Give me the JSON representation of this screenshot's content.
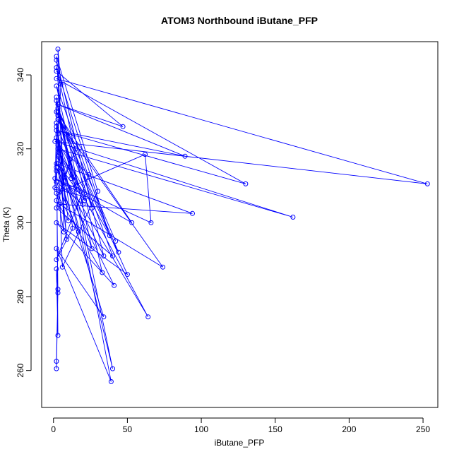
{
  "chart_data": {
    "type": "line",
    "title": "ATOM3 Northbound iButane_PFP",
    "xlabel": "iButane_PFP",
    "ylabel": "Theta (K)",
    "xlim": [
      -8,
      260
    ],
    "ylim": [
      250,
      349
    ],
    "xticks": [
      0,
      50,
      100,
      150,
      200,
      250
    ],
    "yticks": [
      260,
      280,
      300,
      320,
      340
    ],
    "grid": false,
    "legend": "none",
    "marker": "open-circle",
    "series_color": "#0000ff",
    "points": [
      [
        2,
        341
      ],
      [
        47,
        326
      ],
      [
        3,
        332
      ],
      [
        89,
        318
      ],
      [
        2,
        325
      ],
      [
        130,
        310.5
      ],
      [
        2,
        339
      ],
      [
        253,
        310.5
      ],
      [
        1,
        322
      ],
      [
        162,
        301.5
      ],
      [
        3,
        320
      ],
      [
        64,
        274.5
      ],
      [
        2,
        316
      ],
      [
        94,
        302.5
      ],
      [
        4,
        305
      ],
      [
        74,
        288
      ],
      [
        3,
        328
      ],
      [
        50,
        286
      ],
      [
        2,
        300
      ],
      [
        41,
        283
      ],
      [
        2,
        315
      ],
      [
        34,
        274.5
      ],
      [
        2,
        293
      ],
      [
        39,
        257
      ],
      [
        2,
        334
      ],
      [
        40,
        260.5
      ],
      [
        3,
        322
      ],
      [
        44,
        292
      ],
      [
        2,
        330
      ],
      [
        53,
        300
      ],
      [
        1,
        312
      ],
      [
        66,
        300
      ],
      [
        62,
        318.5
      ],
      [
        2,
        308
      ],
      [
        33,
        286.5
      ],
      [
        2,
        342
      ],
      [
        38,
        296.5
      ],
      [
        2,
        337
      ],
      [
        26,
        293
      ],
      [
        3,
        318
      ],
      [
        9,
        295.5
      ],
      [
        2,
        327
      ],
      [
        13,
        298.5
      ],
      [
        2,
        290
      ],
      [
        24,
        313
      ],
      [
        3,
        321
      ],
      [
        17,
        297.5
      ],
      [
        2,
        311
      ],
      [
        20,
        305
      ],
      [
        3,
        329
      ],
      [
        15,
        320
      ],
      [
        2,
        306
      ],
      [
        10,
        300.5
      ],
      [
        3,
        324
      ],
      [
        8,
        305.5
      ],
      [
        2,
        345
      ],
      [
        30,
        308.5
      ],
      [
        6,
        288
      ],
      [
        2,
        333
      ],
      [
        12,
        312
      ],
      [
        4,
        319
      ],
      [
        22,
        307
      ],
      [
        2,
        309
      ],
      [
        7,
        297.5
      ],
      [
        3,
        347
      ],
      [
        5,
        337.5
      ],
      [
        2,
        314
      ],
      [
        1,
        309.5
      ],
      [
        2,
        326
      ],
      [
        3,
        269.5
      ],
      [
        2,
        287.5
      ],
      [
        3,
        282
      ],
      [
        2,
        262.5
      ],
      [
        2,
        260.5
      ],
      [
        3,
        281
      ],
      [
        2,
        323
      ],
      [
        16,
        309
      ],
      [
        3,
        330
      ],
      [
        26,
        304
      ],
      [
        2,
        344
      ],
      [
        34,
        291
      ],
      [
        3,
        316
      ],
      [
        21,
        306
      ],
      [
        2,
        327
      ],
      [
        11,
        317
      ],
      [
        2,
        304
      ],
      [
        40,
        291
      ],
      [
        3,
        331
      ],
      [
        42,
        295
      ]
    ]
  }
}
